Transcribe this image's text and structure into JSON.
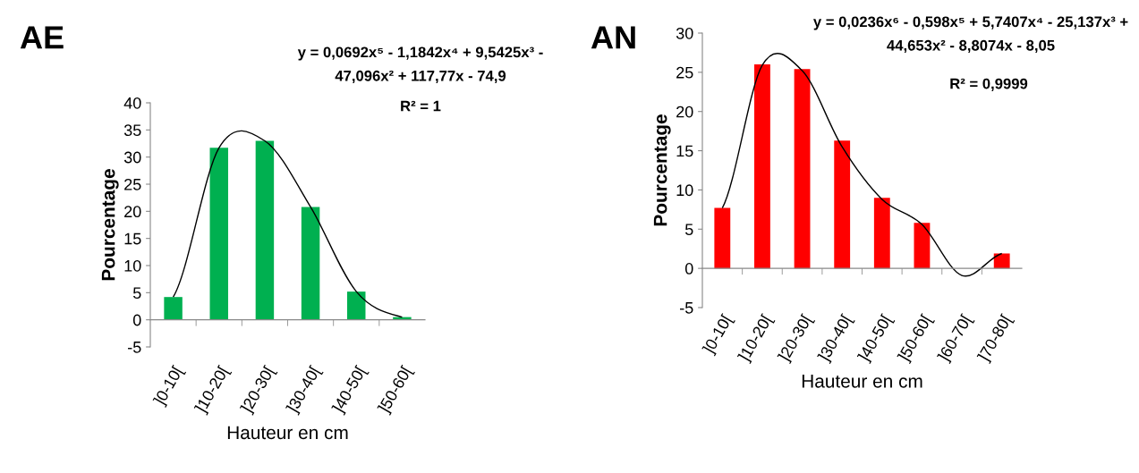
{
  "chart_data": [
    {
      "type": "bar",
      "title": "AE",
      "xlabel": "Hauteur en cm",
      "ylabel": "Pourcentage",
      "categories": [
        "]0-10[",
        "]10-20[",
        "]20-30[",
        "]30-40[",
        "]40-50[",
        "]50-60["
      ],
      "series": [
        {
          "color": "#00b050",
          "values": [
            4.2,
            31.7,
            33,
            20.8,
            5.2,
            0.5
          ]
        },
        {
          "type": "line",
          "color": "#000000",
          "values": [
            4.2,
            31.7,
            33,
            20.8,
            5.2,
            0.5
          ]
        }
      ],
      "ylim": [
        -5,
        40
      ],
      "yticks": [
        -5,
        0,
        5,
        10,
        15,
        20,
        25,
        30,
        35,
        40
      ],
      "annotations": [
        "y = 0,0692x⁵ - 1,1842x⁴ + 9,5425x³ -\n47,096x² + 117,77x - 74,9",
        "R² = 1"
      ]
    },
    {
      "type": "bar",
      "title": "AN",
      "xlabel": "Hauteur en cm",
      "ylabel": "Pourcentage",
      "categories": [
        "]0-10[",
        "]10-20[",
        "]20-30[",
        "]30-40[",
        "]40-50[",
        "]50-60[",
        "]60-70[",
        "]70-80["
      ],
      "series": [
        {
          "color": "#ff0000",
          "values": [
            7.7,
            26,
            25.4,
            16.3,
            9,
            5.8,
            0,
            1.9
          ]
        },
        {
          "type": "line",
          "color": "#000000",
          "values": [
            7.7,
            25.9,
            25.2,
            15.5,
            8.8,
            5.6,
            -0.9,
            1.9
          ]
        }
      ],
      "ylim": [
        -5,
        30
      ],
      "yticks": [
        -5,
        0,
        5,
        10,
        15,
        20,
        25,
        30
      ],
      "annotations": [
        "y = 0,0236x⁶ - 0,598x⁵ + 5,7407x⁴ - 25,137x³ +\n44,653x² - 8,8074x - 8,05",
        "R² = 0,9999"
      ]
    }
  ]
}
